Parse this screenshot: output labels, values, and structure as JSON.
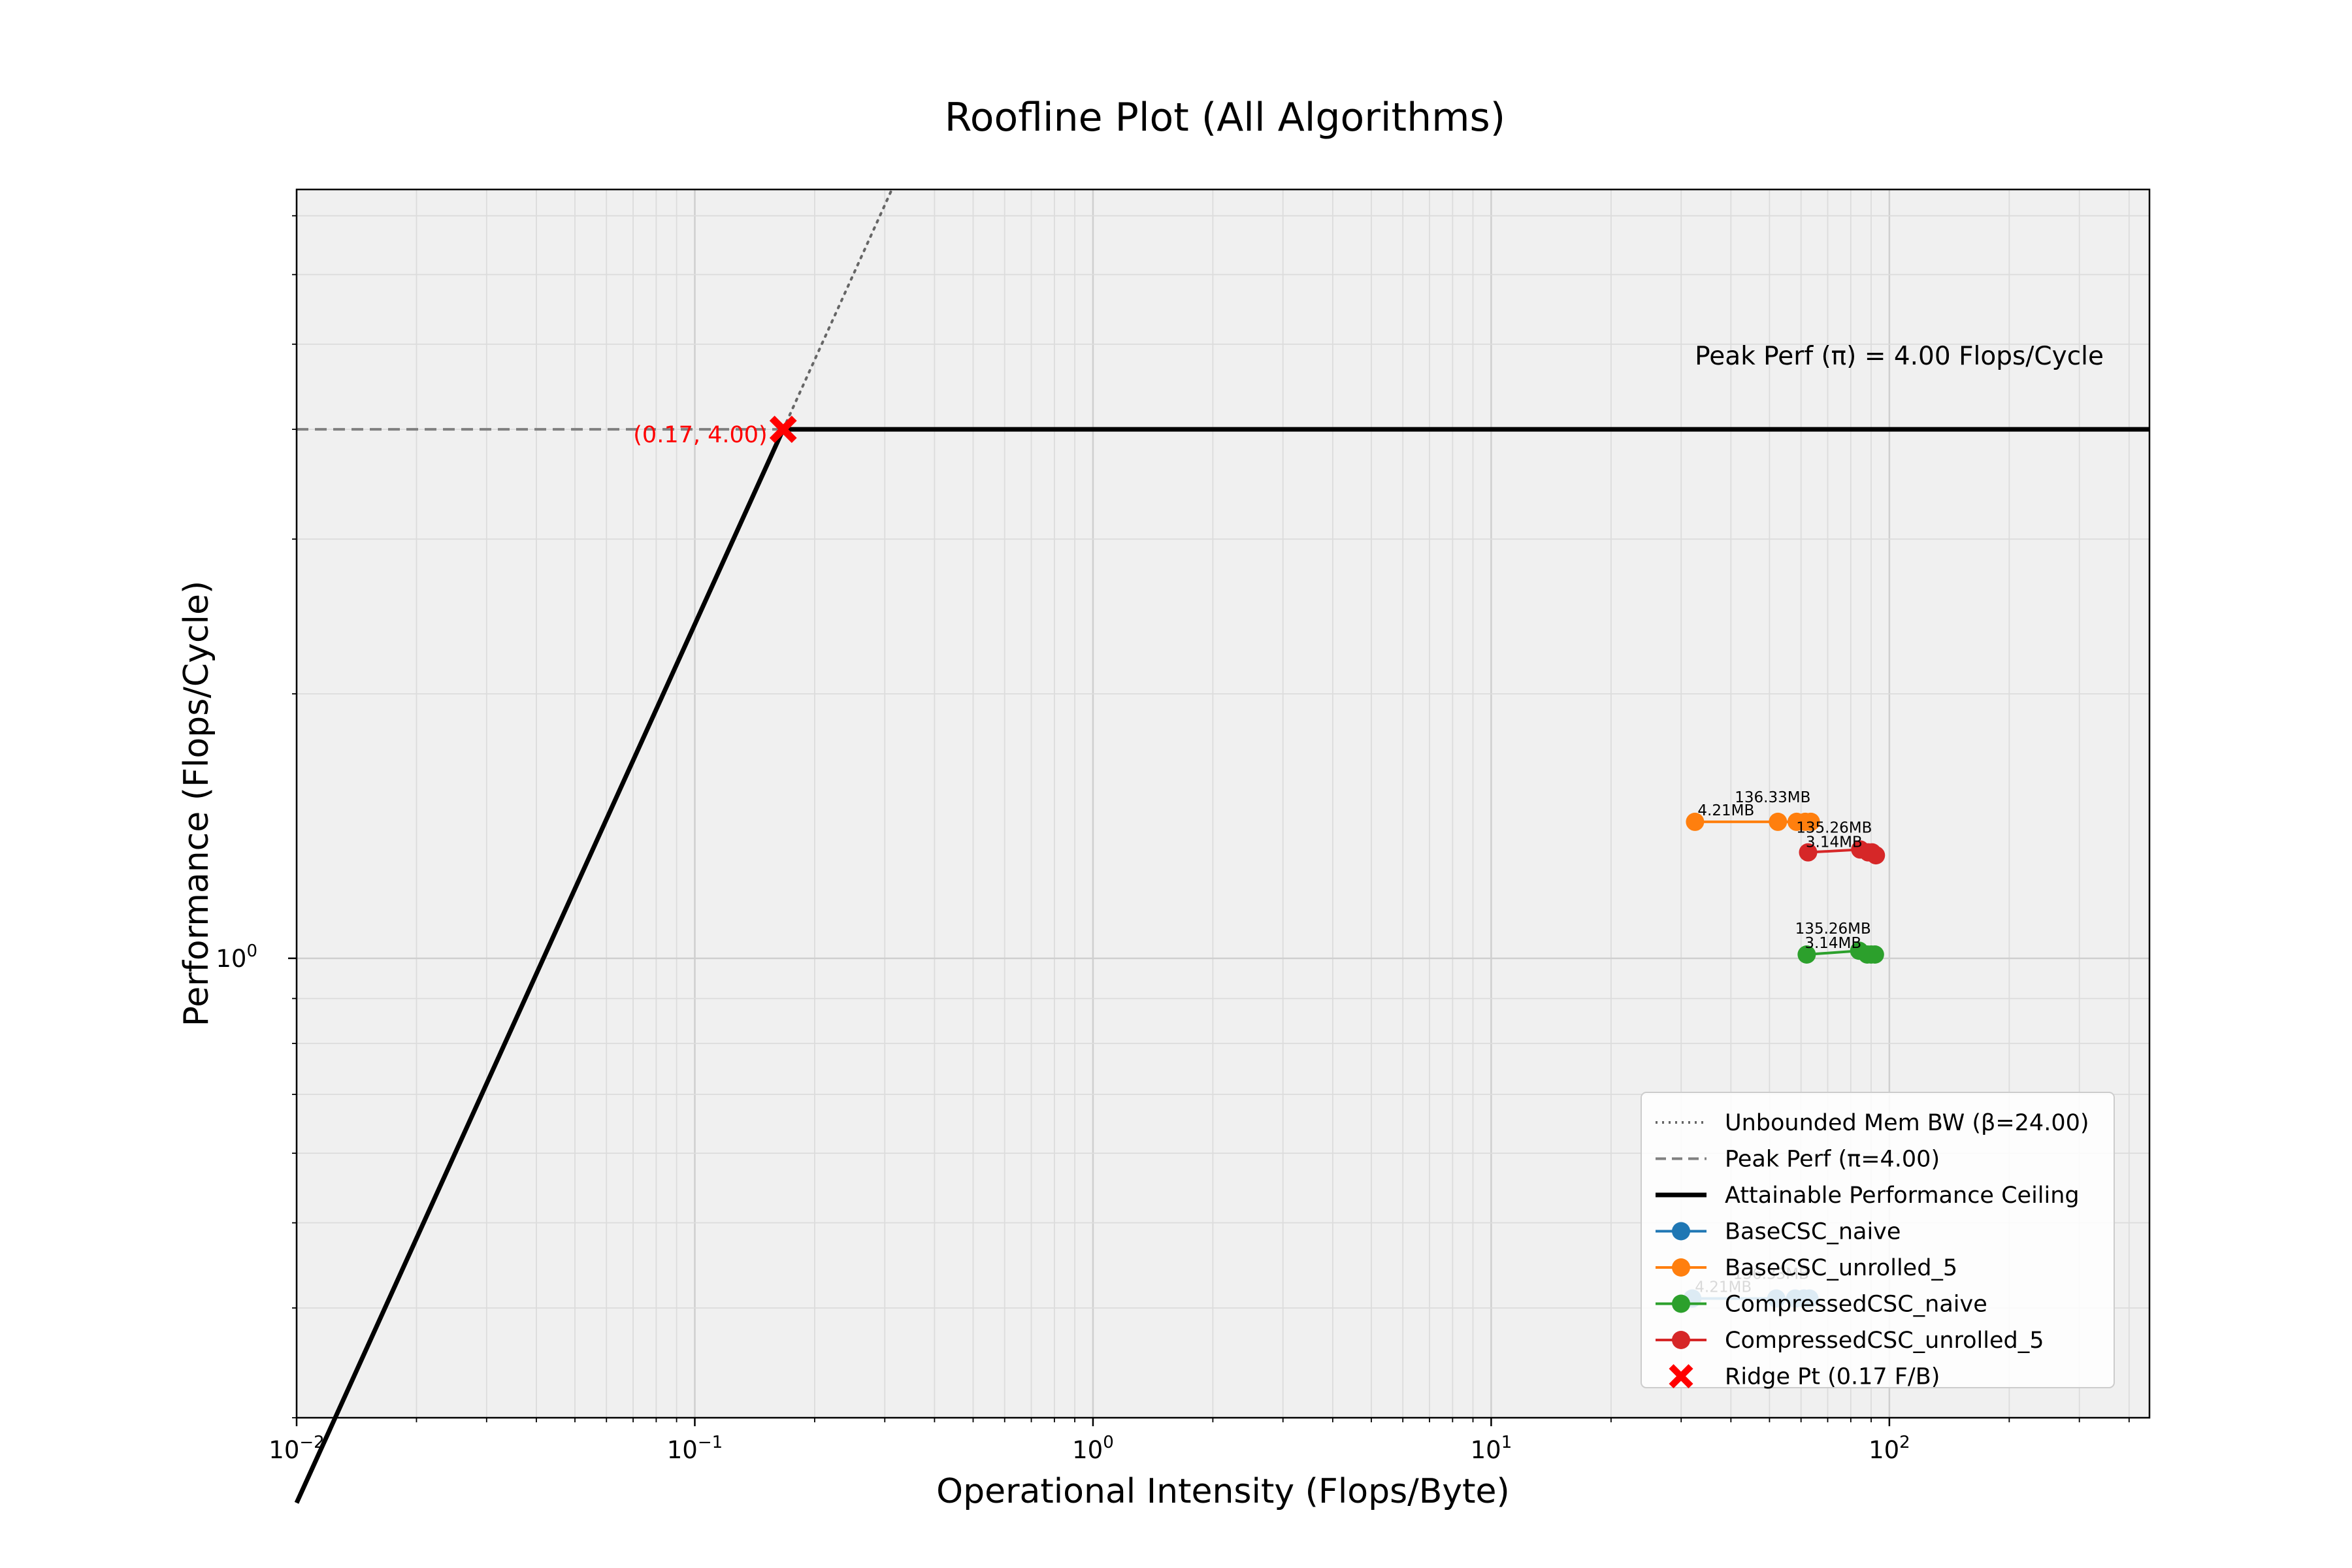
{
  "chart_data": {
    "type": "scatter",
    "title": "Roofline Plot (All Algorithms)",
    "xlabel": "Operational Intensity (Flops/Byte)",
    "ylabel": "Performance (Flops/Cycle)",
    "xscale": "log",
    "yscale": "log",
    "xlim": [
      0.01,
      450
    ],
    "ylim": [
      0.3,
      7.5
    ],
    "grid": true,
    "legend_position": "lower right",
    "beta": 24.0,
    "pi": 4.0,
    "ridge": {
      "x": 0.1667,
      "y": 4.0,
      "label": "(0.17, 4.00)"
    },
    "peak_annotation": "Peak Perf (π) = 4.00 Flops/Cycle",
    "x_ticks": [
      {
        "value": 0.01,
        "base": "10",
        "exp": "−2"
      },
      {
        "value": 0.1,
        "base": "10",
        "exp": "−1"
      },
      {
        "value": 1,
        "base": "10",
        "exp": "0"
      },
      {
        "value": 10,
        "base": "10",
        "exp": "1"
      },
      {
        "value": 100,
        "base": "10",
        "exp": "2"
      }
    ],
    "y_ticks": [
      {
        "value": 1,
        "base": "10",
        "exp": "0"
      }
    ],
    "lines": [
      {
        "name": "Unbounded Mem BW (β=24.00)",
        "color": "#666666",
        "style": "dotted"
      },
      {
        "name": "Peak Perf (π=4.00)",
        "color": "#808080",
        "style": "dashed"
      },
      {
        "name": "Attainable Performance Ceiling",
        "color": "#000000",
        "style": "solid"
      }
    ],
    "series": [
      {
        "name": "BaseCSC_naive",
        "color": "#1f77b4",
        "x": [
          32.0,
          52.0,
          58.0,
          61.0,
          63.0
        ],
        "y": [
          0.41,
          0.41,
          0.41,
          0.41,
          0.41
        ],
        "labels": [
          "4.21MB",
          "136.33MB"
        ]
      },
      {
        "name": "BaseCSC_unrolled_5",
        "color": "#ff7f0e",
        "x": [
          32.5,
          52.5,
          58.5,
          61.5,
          63.5
        ],
        "y": [
          1.43,
          1.43,
          1.43,
          1.43,
          1.43
        ],
        "labels": [
          "4.21MB",
          "136.33MB"
        ]
      },
      {
        "name": "CompressedCSC_naive",
        "color": "#2ca02c",
        "x": [
          62.0,
          84.0,
          88.0,
          90.0,
          92.0
        ],
        "y": [
          1.01,
          1.02,
          1.01,
          1.01,
          1.01
        ],
        "labels": [
          "135.26MB",
          "3.14MB"
        ]
      },
      {
        "name": "CompressedCSC_unrolled_5",
        "color": "#d62728",
        "x": [
          62.5,
          84.5,
          88.5,
          90.5,
          92.5
        ],
        "y": [
          1.32,
          1.33,
          1.32,
          1.32,
          1.31
        ],
        "labels": [
          "135.26MB",
          "3.14MB"
        ]
      }
    ],
    "ridge_legend": "Ridge Pt (0.17 F/B)"
  }
}
